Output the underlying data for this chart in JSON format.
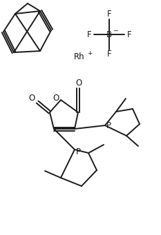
{
  "bg_color": "#ffffff",
  "line_color": "#1a1a1a",
  "lw": 1.4,
  "fs": 8.5,
  "figsize": [
    2.33,
    3.41
  ],
  "dpi": 100,
  "xlim": [
    0,
    233
  ],
  "ylim": [
    341,
    0
  ]
}
